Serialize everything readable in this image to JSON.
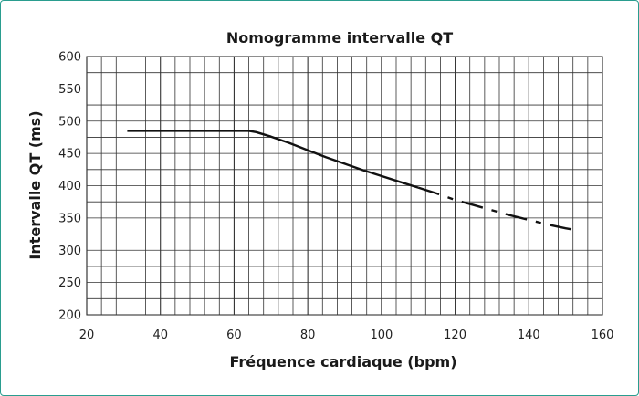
{
  "chart_data": {
    "type": "line",
    "title": "Nomogramme intervalle QT",
    "xlabel": "Fréquence cardiaque (bpm)",
    "ylabel": "Intervalle QT (ms)",
    "xlim": [
      20,
      160
    ],
    "ylim": [
      200,
      600
    ],
    "xticks": [
      20,
      40,
      60,
      80,
      100,
      120,
      140,
      160
    ],
    "yticks": [
      200,
      250,
      300,
      350,
      400,
      450,
      500,
      550,
      600
    ],
    "x_minor_step": 4,
    "y_grid_step": 25,
    "grid": true,
    "series": [
      {
        "style": "solid",
        "points": [
          [
            31,
            485
          ],
          [
            64,
            485
          ],
          [
            66,
            483
          ],
          [
            70,
            476
          ],
          [
            75,
            466
          ],
          [
            80,
            455
          ],
          [
            85,
            444
          ],
          [
            90,
            434
          ],
          [
            95,
            424
          ],
          [
            100,
            415
          ],
          [
            105,
            406
          ],
          [
            110,
            397
          ]
        ]
      },
      {
        "style": "dashed",
        "points": [
          [
            110,
            397
          ],
          [
            115,
            388
          ],
          [
            120,
            378
          ],
          [
            125,
            370
          ],
          [
            130,
            362
          ],
          [
            135,
            354
          ],
          [
            140,
            347
          ],
          [
            145,
            340
          ],
          [
            150,
            334
          ],
          [
            153,
            331
          ]
        ]
      }
    ]
  },
  "colors": {
    "line": "#111111",
    "grid": "#333333",
    "frame": "#2a9d8f"
  }
}
